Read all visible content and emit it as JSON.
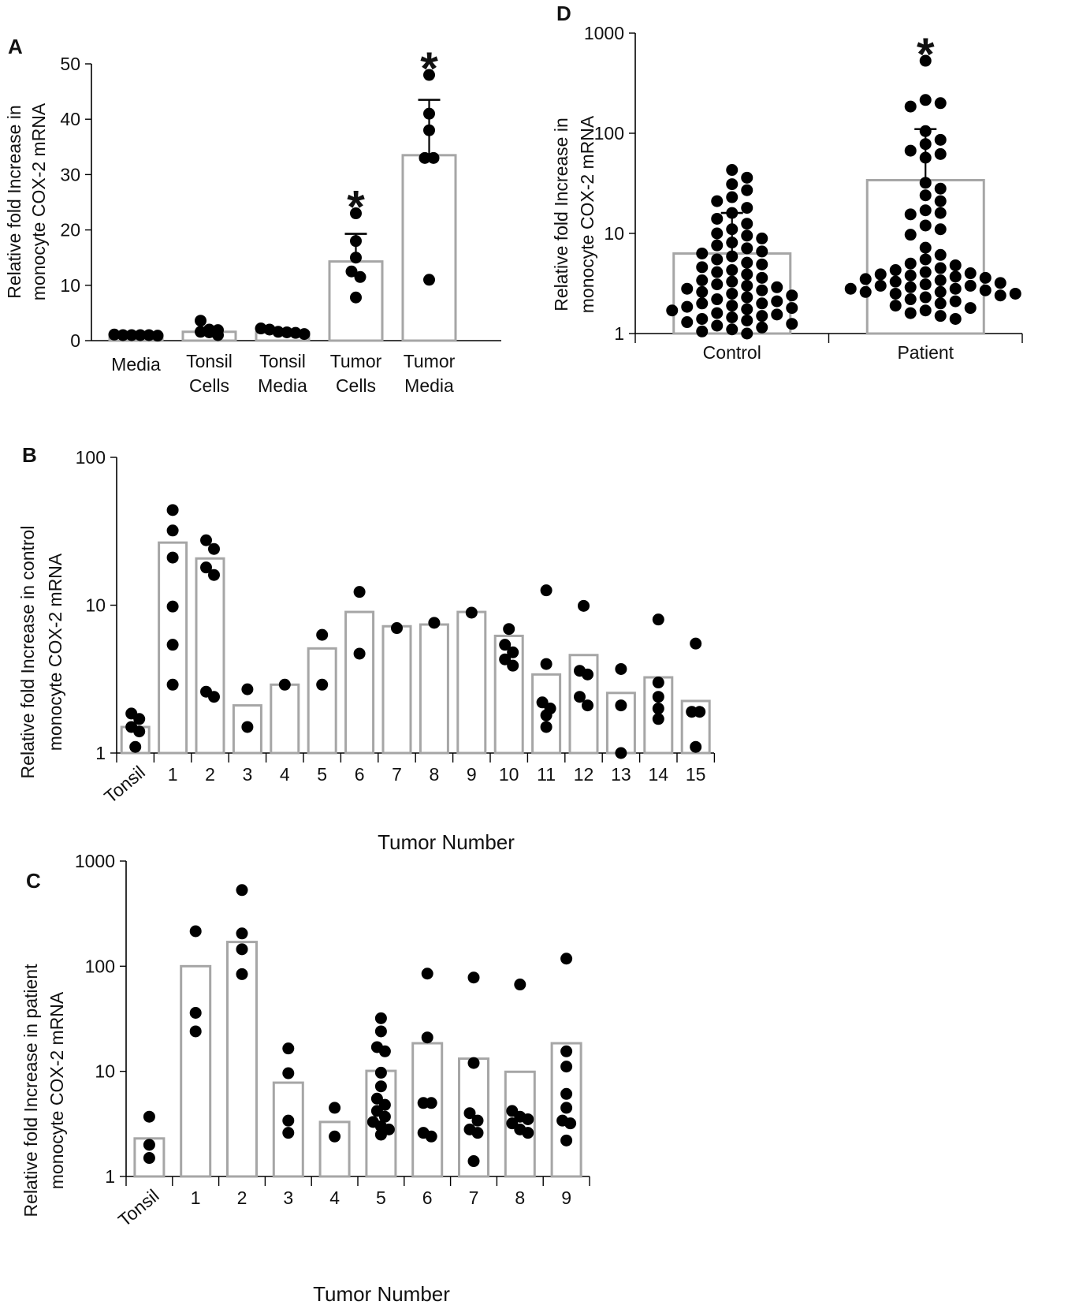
{
  "figure": {
    "colors": {
      "bar_edge": "#a6a6a6",
      "point": "#000000",
      "axis": "#000000",
      "text": "#111111"
    },
    "panels": {
      "A": {
        "letter": "A",
        "ylabel_lines": [
          "Relative fold Increase in",
          "monocyte COX-2 mRNA"
        ],
        "significance": "*"
      },
      "B": {
        "letter": "B",
        "ylabel_lines": [
          "Relative fold Increase in control",
          "monocyte COX-2 mRNA"
        ],
        "xlabel": "Tumor Number"
      },
      "C": {
        "letter": "C",
        "ylabel_lines": [
          "Relative fold Increase in patient",
          "monocyte COX-2 mRNA"
        ],
        "xlabel": "Tumor Number"
      },
      "D": {
        "letter": "D",
        "ylabel_lines": [
          "Relative fold Increase in",
          "monocyte COX-2 mRNA"
        ],
        "significance": "*"
      }
    }
  },
  "chart_data": [
    {
      "panel": "A",
      "type": "bar",
      "scale": "linear",
      "ylim": [
        0,
        50
      ],
      "yticks": [
        0,
        10,
        20,
        30,
        40,
        50
      ],
      "categories": [
        [
          "Media"
        ],
        [
          "Tonsil",
          "Cells"
        ],
        [
          "Tonsil",
          "Media"
        ],
        [
          "Tumor",
          "Cells"
        ],
        [
          "Tumor",
          "Media"
        ]
      ],
      "values": [
        1,
        1.6,
        1.5,
        14.3,
        33.5
      ],
      "error_upper": [
        null,
        null,
        null,
        19.3,
        43.5
      ],
      "points": [
        [
          0.9,
          1.0,
          1.0,
          1.1,
          1.0,
          1.0
        ],
        [
          1.0,
          1.5,
          1.6,
          1.9,
          3.6,
          2.0
        ],
        [
          1.2,
          1.4,
          1.6,
          2.2,
          2.0,
          1.5
        ],
        [
          23,
          18,
          15,
          12.5,
          11.5,
          7.8
        ],
        [
          48,
          41,
          38,
          33,
          33,
          11
        ]
      ],
      "significant": [
        false,
        false,
        false,
        true,
        true
      ]
    },
    {
      "panel": "B",
      "type": "bar",
      "scale": "log",
      "ylim": [
        1,
        100
      ],
      "yticks": [
        1,
        10,
        100
      ],
      "xlabel": "Tumor Number",
      "categories": [
        "Tonsil",
        "1",
        "2",
        "3",
        "4",
        "5",
        "6",
        "7",
        "8",
        "9",
        "10",
        "11",
        "12",
        "13",
        "14",
        "15"
      ],
      "values": [
        1.5,
        26.5,
        20.7,
        2.1,
        2.9,
        5.1,
        9.0,
        7.2,
        7.4,
        9.0,
        6.2,
        3.4,
        4.6,
        2.55,
        3.25,
        2.25
      ],
      "points": [
        [
          1.85,
          1.7,
          1.5,
          1.4,
          1.1
        ],
        [
          44,
          32,
          21,
          9.8,
          5.4,
          2.9
        ],
        [
          27.5,
          24,
          18,
          16,
          2.6,
          2.4
        ],
        [
          2.7,
          1.5
        ],
        [
          2.9
        ],
        [
          6.3,
          2.9
        ],
        [
          12.3,
          4.7
        ],
        [
          7.0
        ],
        [
          7.6
        ],
        [
          8.9
        ],
        [
          6.9,
          5.4,
          4.8,
          4.3,
          3.9
        ],
        [
          12.6,
          4.0,
          2.2,
          2.0,
          1.8,
          1.5
        ],
        [
          9.9,
          3.6,
          3.4,
          2.4,
          2.1
        ],
        [
          3.7,
          2.1,
          1.0
        ],
        [
          8.0,
          3.0,
          2.4,
          2.0,
          1.7
        ],
        [
          5.5,
          1.9,
          1.9,
          1.1
        ]
      ]
    },
    {
      "panel": "C",
      "type": "bar",
      "scale": "log",
      "ylim": [
        1,
        1000
      ],
      "yticks": [
        1,
        10,
        100,
        1000
      ],
      "xlabel": "Tumor Number",
      "categories": [
        "Tonsil",
        "1",
        "2",
        "3",
        "4",
        "5",
        "6",
        "7",
        "8",
        "9"
      ],
      "values": [
        2.3,
        100,
        170,
        7.8,
        3.3,
        10.1,
        18.5,
        13.2,
        9.9,
        18.5
      ],
      "points": [
        [
          3.7,
          2.0,
          1.5
        ],
        [
          215,
          36,
          24
        ],
        [
          530,
          205,
          145,
          84
        ],
        [
          16.5,
          9.6,
          3.4,
          2.6
        ],
        [
          4.5,
          2.4
        ],
        [
          32,
          24,
          17,
          15.5,
          9.7,
          7.2,
          5.5,
          4.8,
          4.2,
          3.7,
          3.3,
          3.0,
          2.8,
          2.5
        ],
        [
          85,
          21,
          5.0,
          5.0,
          2.6,
          2.4
        ],
        [
          78,
          12,
          4.0,
          3.4,
          2.8,
          2.6,
          1.4
        ],
        [
          67,
          4.2,
          3.7,
          3.5,
          3.2,
          2.8,
          2.6
        ],
        [
          118,
          15.5,
          11.1,
          6.1,
          4.5,
          3.4,
          3.2,
          2.2
        ]
      ]
    },
    {
      "panel": "D",
      "type": "bar",
      "scale": "log",
      "ylim": [
        1,
        1000
      ],
      "yticks": [
        1,
        10,
        100,
        1000
      ],
      "categories": [
        "Control",
        "Patient"
      ],
      "values": [
        6.3,
        34
      ],
      "error_upper": [
        16,
        110
      ],
      "points": [
        [
          43,
          36,
          31,
          27,
          23,
          21,
          18,
          16,
          14,
          12.5,
          11,
          10,
          9.5,
          8.9,
          8.1,
          7.6,
          7.1,
          6.6,
          6.3,
          5.9,
          5.5,
          5.1,
          4.9,
          4.6,
          4.3,
          4.1,
          3.9,
          3.6,
          3.4,
          3.3,
          3.1,
          3.0,
          2.9,
          2.8,
          2.7,
          2.6,
          2.5,
          2.4,
          2.3,
          2.2,
          2.1,
          2.0,
          2.0,
          1.9,
          1.85,
          1.8,
          1.75,
          1.7,
          1.6,
          1.55,
          1.5,
          1.45,
          1.4,
          1.35,
          1.3,
          1.25,
          1.2,
          1.15,
          1.1,
          1.05,
          1.0
        ],
        [
          530,
          215,
          200,
          185,
          105,
          86,
          78,
          67,
          62,
          57,
          32,
          28,
          24,
          21,
          17,
          16,
          15.5,
          12,
          11,
          9.7,
          7.2,
          6.1,
          5.5,
          5.0,
          4.8,
          4.5,
          4.3,
          4.1,
          4.0,
          3.9,
          3.8,
          3.7,
          3.6,
          3.5,
          3.4,
          3.3,
          3.2,
          3.1,
          3.0,
          3.0,
          2.9,
          2.8,
          2.8,
          2.7,
          2.6,
          2.6,
          2.5,
          2.5,
          2.4,
          2.3,
          2.2,
          2.1,
          2.0,
          1.9,
          1.8,
          1.7,
          1.6,
          1.5,
          1.4
        ]
      ],
      "significant": [
        false,
        true
      ]
    }
  ]
}
